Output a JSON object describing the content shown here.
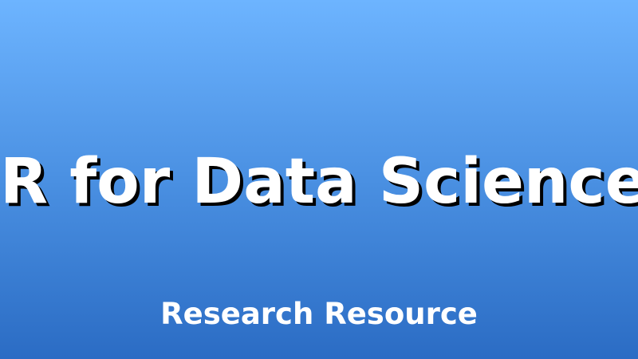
{
  "banner": {
    "title": "R for Data Science",
    "subtitle": "Research Resource",
    "colors": {
      "gradient_top": "#6db4ff",
      "gradient_bottom": "#2b6cc4",
      "text": "#ffffff",
      "title_shadow": "#000000"
    }
  }
}
